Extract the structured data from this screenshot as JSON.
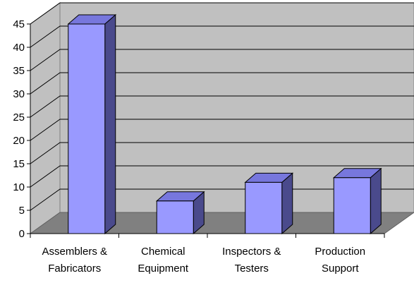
{
  "chart_data": {
    "type": "bar",
    "title": "",
    "xlabel": "",
    "ylabel": "",
    "categories": [
      [
        "Assemblers &",
        "Fabricators"
      ],
      [
        "Chemical",
        "Equipment"
      ],
      [
        "Inspectors &",
        "Testers"
      ],
      [
        "Production",
        "Support"
      ]
    ],
    "values": [
      45,
      7,
      11,
      12
    ],
    "ylim": [
      0,
      45
    ],
    "yticks": [
      "0",
      "5",
      "10",
      "15",
      "20",
      "25",
      "30",
      "35",
      "40",
      "45"
    ],
    "grid": true,
    "legend": "none",
    "colors": {
      "bar_front": "#9999ff",
      "bar_side": "#4a4a8c",
      "bar_top": "#7777dd",
      "back_wall": "#c0c0c0",
      "floor": "#808080",
      "gridline": "#000000"
    }
  }
}
